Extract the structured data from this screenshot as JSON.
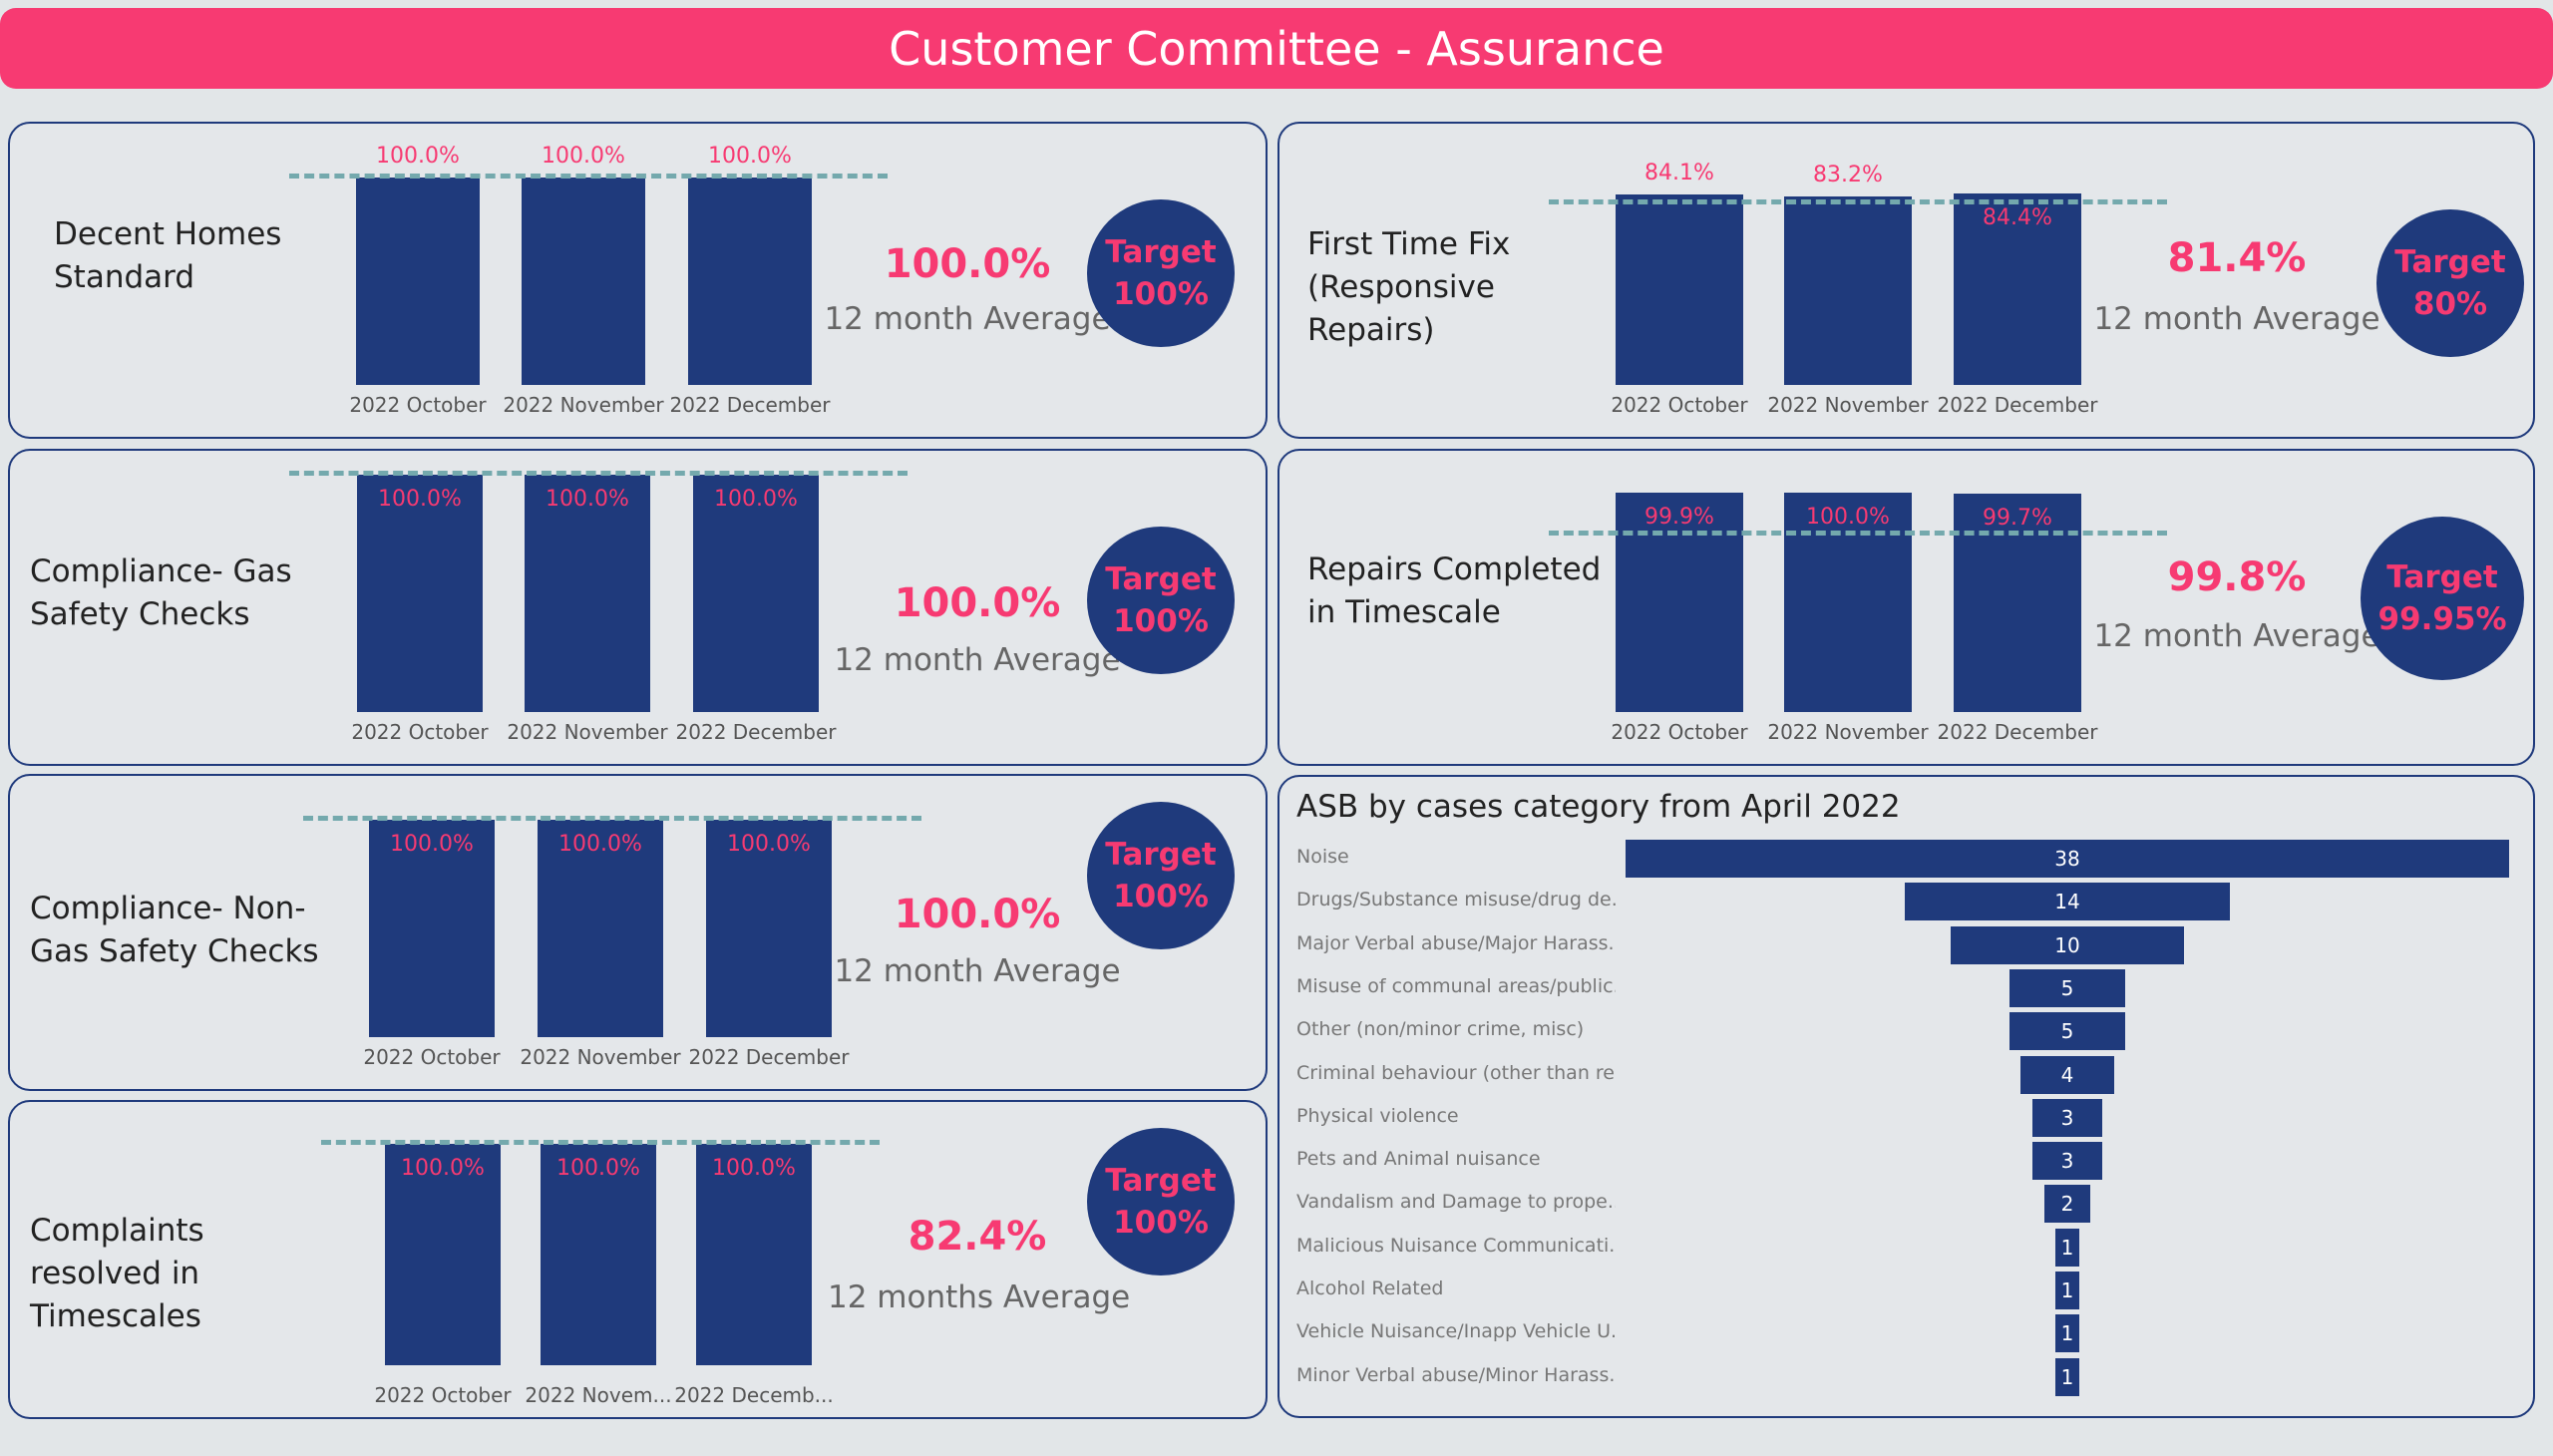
{
  "header": {
    "title": "Customer Committee - Assurance"
  },
  "colors": {
    "header_bg": "#f73a72",
    "bar": "#1f3a7c",
    "accent": "#f73a72",
    "target_bg": "#1f3a7c"
  },
  "kpis": [
    {
      "id": "decent-homes",
      "title_lines": [
        "Decent Homes",
        "Standard"
      ],
      "categories": [
        "2022 October",
        "2022 November",
        "2022 December"
      ],
      "values": [
        100.0,
        100.0,
        100.0
      ],
      "value_labels": [
        "100.0%",
        "100.0%",
        "100.0%"
      ],
      "target_value": 100,
      "average": "100.0%",
      "average_label": "12 month Average",
      "target_lines": [
        "Target",
        "100%"
      ]
    },
    {
      "id": "gas-safety",
      "title_lines": [
        "Compliance- Gas",
        "Safety Checks"
      ],
      "categories": [
        "2022 October",
        "2022 November",
        "2022 December"
      ],
      "values": [
        100.0,
        100.0,
        100.0
      ],
      "value_labels": [
        "100.0%",
        "100.0%",
        "100.0%"
      ],
      "target_value": 100,
      "average": "100.0%",
      "average_label": "12 month Average",
      "target_lines": [
        "Target",
        "100%"
      ]
    },
    {
      "id": "non-gas-safety",
      "title_lines": [
        "Compliance- Non-",
        "Gas Safety Checks"
      ],
      "categories": [
        "2022 October",
        "2022 November",
        "2022 December"
      ],
      "values": [
        100.0,
        100.0,
        100.0
      ],
      "value_labels": [
        "100.0%",
        "100.0%",
        "100.0%"
      ],
      "target_value": 100,
      "average": "100.0%",
      "average_label": "12 month Average",
      "target_lines": [
        "Target",
        "100%"
      ]
    },
    {
      "id": "complaints",
      "title_lines": [
        "Complaints",
        "resolved in",
        "Timescales"
      ],
      "categories": [
        "2022 October",
        "2022 Novem...",
        "2022 Decemb..."
      ],
      "values": [
        100.0,
        100.0,
        100.0
      ],
      "value_labels": [
        "100.0%",
        "100.0%",
        "100.0%"
      ],
      "target_value": 100,
      "average": "82.4%",
      "average_label": "12 months Average",
      "target_lines": [
        "Target",
        "100%"
      ]
    },
    {
      "id": "first-time-fix",
      "title_lines": [
        "First Time Fix",
        "(Responsive",
        "Repairs)"
      ],
      "categories": [
        "2022 October",
        "2022 November",
        "2022 December"
      ],
      "values": [
        84.1,
        83.2,
        84.4
      ],
      "value_labels": [
        "84.1%",
        "83.2%",
        "84.4%"
      ],
      "target_value": 80,
      "average": "81.4%",
      "average_label": "12 month Average",
      "target_lines": [
        "Target",
        "80%"
      ]
    },
    {
      "id": "repairs-timescale",
      "title_lines": [
        "Repairs Completed",
        "in Timescale"
      ],
      "categories": [
        "2022 October",
        "2022 November",
        "2022 December"
      ],
      "values": [
        99.9,
        100.0,
        99.7
      ],
      "value_labels": [
        "99.9%",
        "100.0%",
        "99.7%"
      ],
      "target_value": 99.95,
      "average": "99.8%",
      "average_label": "12 month Average",
      "target_lines": [
        "Target",
        "99.95%"
      ]
    }
  ],
  "chart_data": {
    "type": "bar",
    "title": "ASB by cases category from April 2022",
    "categories": [
      "Noise",
      "Drugs/Substance misuse/drug de...",
      "Major Verbal abuse/Major Harass...",
      "Misuse of communal areas/public...",
      "Other (non/minor crime, misc)",
      "Criminal behaviour (other than re...",
      "Physical violence",
      "Pets and Animal nuisance",
      "Vandalism and Damage to prope...",
      "Malicious Nuisance Communicati...",
      "Alcohol Related",
      "Vehicle Nuisance/Inapp Vehicle U...",
      "Minor Verbal abuse/Minor Harass..."
    ],
    "values": [
      38,
      14,
      10,
      5,
      5,
      4,
      3,
      3,
      2,
      1,
      1,
      1,
      1
    ],
    "value_labels": [
      "38",
      "14",
      "10",
      "5",
      "5",
      "4",
      "3",
      "3",
      "2",
      "1",
      "1",
      "1",
      "1"
    ]
  }
}
